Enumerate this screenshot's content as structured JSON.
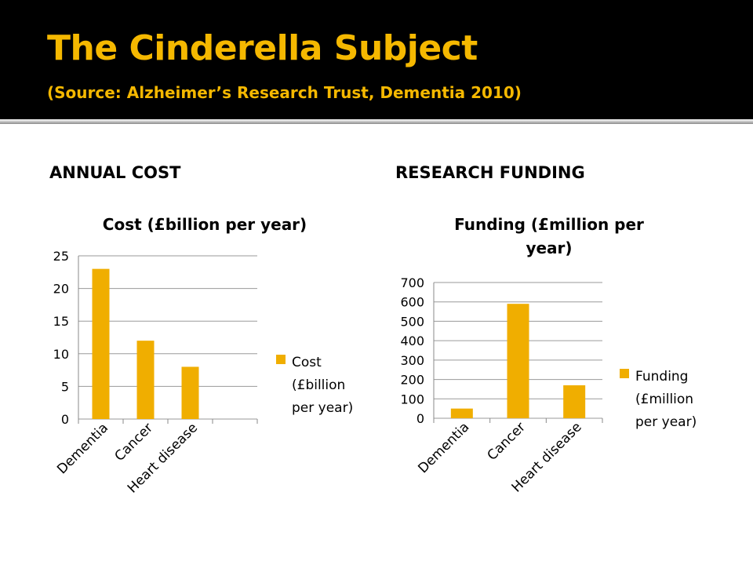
{
  "slide": {
    "title": "The Cinderella Subject",
    "subtitle": "(Source: Alzheimer’s Research Trust, Dementia 2010)",
    "heading_left": "ANNUAL COST",
    "heading_right": "RESEARCH FUNDING"
  },
  "colors": {
    "title": "#F5B800",
    "bar": "#F0AE00",
    "background": "#000000"
  },
  "chart_data": [
    {
      "type": "bar",
      "title": "Cost (£billion per year)",
      "categories": [
        "Dementia",
        "Cancer",
        "Heart disease"
      ],
      "series": [
        {
          "name": "Cost (£billion per year)",
          "values": [
            23,
            12,
            8
          ]
        }
      ],
      "yticks": [
        "0",
        "5",
        "10",
        "15",
        "20",
        "25"
      ],
      "ylim": [
        0,
        25
      ],
      "grid": true,
      "legend": "right"
    },
    {
      "type": "bar",
      "title": "Funding (£million per year)",
      "categories": [
        "Dementia",
        "Cancer",
        "Heart disease"
      ],
      "series": [
        {
          "name": "Funding (£million per year)",
          "values": [
            50,
            590,
            170
          ]
        }
      ],
      "yticks": [
        "0",
        "100",
        "200",
        "300",
        "400",
        "500",
        "600",
        "700"
      ],
      "ylim": [
        0,
        700
      ],
      "grid": true,
      "legend": "right"
    }
  ]
}
